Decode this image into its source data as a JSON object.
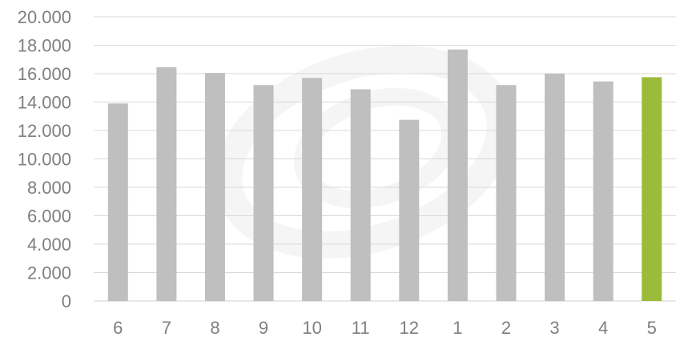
{
  "chart_data": {
    "type": "bar",
    "title": "",
    "xlabel": "",
    "ylabel": "",
    "categories": [
      "6",
      "7",
      "8",
      "9",
      "10",
      "11",
      "12",
      "1",
      "2",
      "3",
      "4",
      "5"
    ],
    "values": [
      13900,
      16450,
      16050,
      15200,
      15700,
      14900,
      12750,
      17700,
      15200,
      16000,
      15450,
      15750
    ],
    "ylim": [
      0,
      20000
    ],
    "yticks": [
      0,
      2000,
      4000,
      6000,
      8000,
      10000,
      12000,
      14000,
      16000,
      18000,
      20000
    ],
    "ytick_labels": [
      "0",
      "2.000",
      "4.000",
      "6.000",
      "8.000",
      "10.000",
      "12.000",
      "14.000",
      "16.000",
      "18.000",
      "20.000"
    ],
    "grid": true,
    "legend": "none",
    "colors": {
      "bar": "#bfbfbf",
      "highlight_bar": "#9bbb3b",
      "highlight_index": 11,
      "grid": "#d9d9d9",
      "text": "#7f7f7f"
    }
  }
}
